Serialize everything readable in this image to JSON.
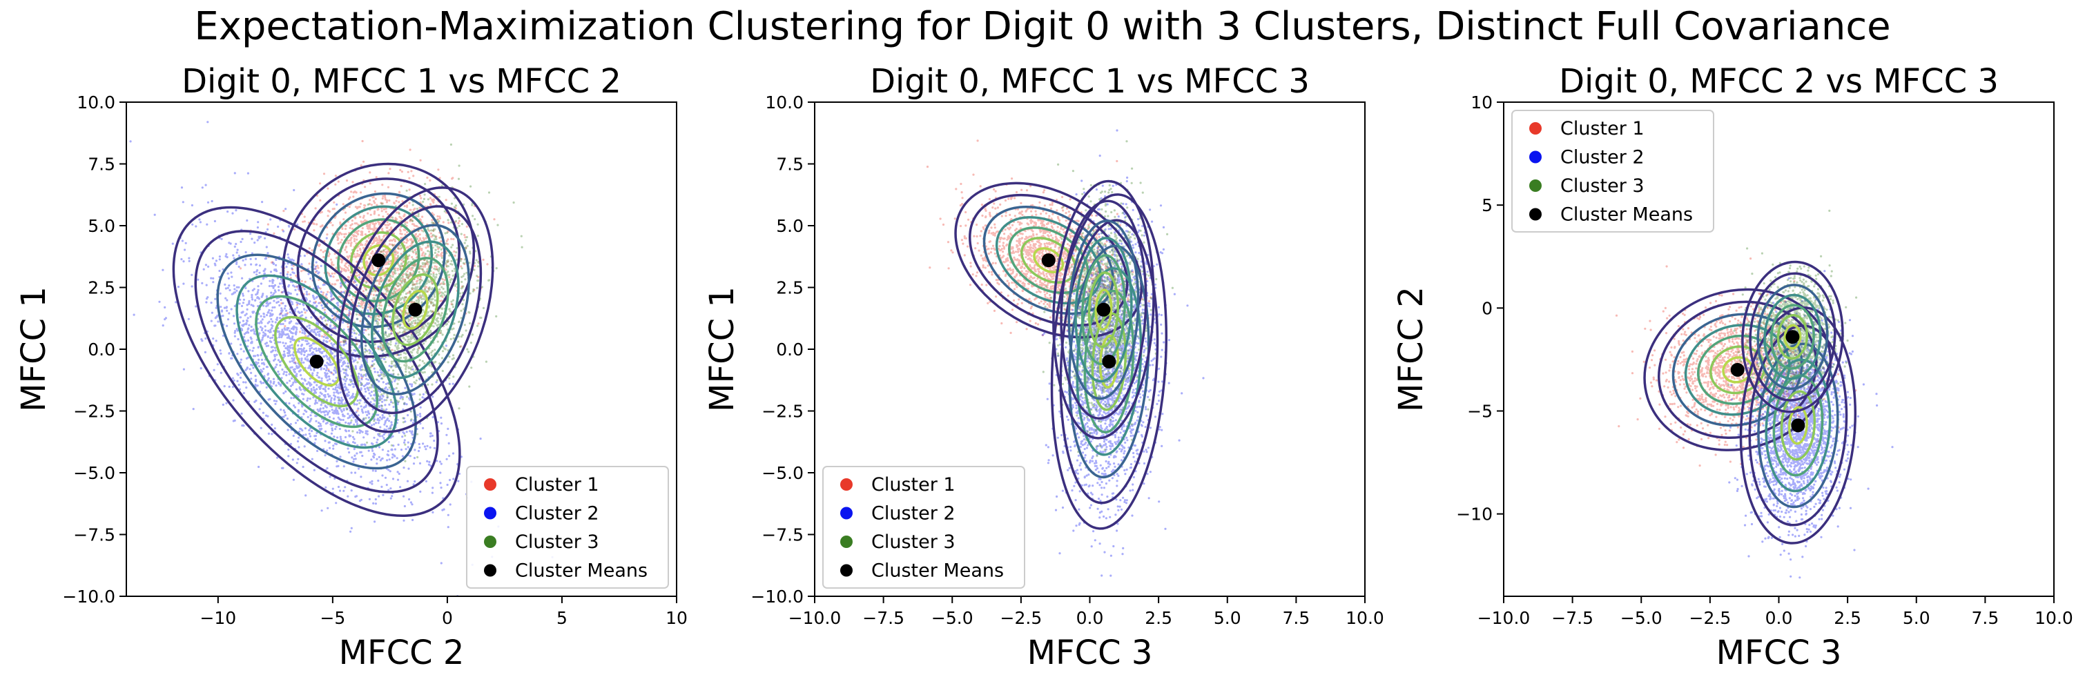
{
  "figure": {
    "suptitle": "Expectation-Maximization Clustering for Digit 0 with 3 Clusters, Distinct Full Covariance"
  },
  "colors": {
    "cluster_1": "#e8392a",
    "cluster_2": "#0a14f0",
    "cluster_3": "#3a7d22",
    "means": "#000000",
    "contour_outer": "#3b2f7e",
    "contour_mid": "#3f8f8a",
    "contour_inner": "#b7d84b"
  },
  "chart_data": [
    {
      "type": "scatter",
      "title": "Digit 0, MFCC 1 vs MFCC 2",
      "xlabel": "MFCC 2",
      "ylabel": "MFCC 1",
      "xlim": [
        -14,
        10
      ],
      "ylim": [
        -10,
        10
      ],
      "xticks": [
        -10,
        -5,
        0,
        5,
        10
      ],
      "xtick_labels": [
        "−10",
        "−5",
        "0",
        "5",
        "10"
      ],
      "yticks": [
        -10,
        -7.5,
        -5,
        -2.5,
        0,
        2.5,
        5,
        7.5,
        10
      ],
      "ytick_labels": [
        "−10.0",
        "−7.5",
        "−5.0",
        "−2.5",
        "0.0",
        "2.5",
        "5.0",
        "7.5",
        "10.0"
      ],
      "legend_position": "lower right",
      "legend": [
        "Cluster 1",
        "Cluster 2",
        "Cluster 3",
        "Cluster Means"
      ],
      "grid": false,
      "clusters": [
        {
          "name": "Cluster 1",
          "mean": [
            -3.0,
            3.6
          ],
          "std": [
            1.6,
            1.5
          ],
          "corr": 0.1
        },
        {
          "name": "Cluster 2",
          "mean": [
            -5.7,
            -0.5
          ],
          "std": [
            2.4,
            2.4
          ],
          "corr": -0.6
        },
        {
          "name": "Cluster 3",
          "mean": [
            -1.4,
            1.6
          ],
          "std": [
            1.3,
            1.9
          ],
          "corr": 0.35
        }
      ]
    },
    {
      "type": "scatter",
      "title": "Digit 0, MFCC 1 vs MFCC 3",
      "xlabel": "MFCC 3",
      "ylabel": "MFCC 1",
      "xlim": [
        -10,
        10
      ],
      "ylim": [
        -10,
        10
      ],
      "xticks": [
        -10,
        -7.5,
        -5,
        -2.5,
        0,
        2.5,
        5,
        7.5,
        10
      ],
      "xtick_labels": [
        "−10.0",
        "−7.5",
        "−5.0",
        "−2.5",
        "0.0",
        "2.5",
        "5.0",
        "7.5",
        "10.0"
      ],
      "yticks": [
        -10,
        -7.5,
        -5,
        -2.5,
        0,
        2.5,
        5,
        7.5,
        10
      ],
      "ytick_labels": [
        "−10.0",
        "−7.5",
        "−5.0",
        "−2.5",
        "0.0",
        "2.5",
        "5.0",
        "7.5",
        "10.0"
      ],
      "legend_position": "lower left",
      "legend": [
        "Cluster 1",
        "Cluster 2",
        "Cluster 3",
        "Cluster Means"
      ],
      "grid": false,
      "clusters": [
        {
          "name": "Cluster 1",
          "mean": [
            -1.5,
            3.6
          ],
          "std": [
            1.3,
            1.2
          ],
          "corr": -0.35
        },
        {
          "name": "Cluster 2",
          "mean": [
            0.7,
            -0.5
          ],
          "std": [
            0.8,
            2.6
          ],
          "corr": 0.15
        },
        {
          "name": "Cluster 3",
          "mean": [
            0.5,
            1.6
          ],
          "std": [
            0.7,
            2.0
          ],
          "corr": 0.1
        }
      ]
    },
    {
      "type": "scatter",
      "title": "Digit 0, MFCC 2 vs MFCC 3",
      "xlabel": "MFCC 3",
      "ylabel": "MFCC 2",
      "xlim": [
        -10,
        10
      ],
      "ylim": [
        -14,
        10
      ],
      "xticks": [
        -10,
        -7.5,
        -5,
        -2.5,
        0,
        2.5,
        5,
        7.5,
        10
      ],
      "xtick_labels": [
        "−10.0",
        "−7.5",
        "−5.0",
        "−2.5",
        "0.0",
        "2.5",
        "5.0",
        "7.5",
        "10.0"
      ],
      "yticks": [
        -10,
        -5,
        0,
        5,
        10
      ],
      "ytick_labels": [
        "−10",
        "−5",
        "0",
        "5",
        "10"
      ],
      "legend_position": "upper left",
      "legend": [
        "Cluster 1",
        "Cluster 2",
        "Cluster 3",
        "Cluster Means"
      ],
      "grid": false,
      "clusters": [
        {
          "name": "Cluster 1",
          "mean": [
            -1.5,
            -3.0
          ],
          "std": [
            1.3,
            1.5
          ],
          "corr": 0.1
        },
        {
          "name": "Cluster 2",
          "mean": [
            0.7,
            -5.7
          ],
          "std": [
            0.8,
            2.2
          ],
          "corr": 0.1
        },
        {
          "name": "Cluster 3",
          "mean": [
            0.5,
            -1.4
          ],
          "std": [
            0.7,
            1.4
          ],
          "corr": 0.05
        }
      ]
    }
  ]
}
